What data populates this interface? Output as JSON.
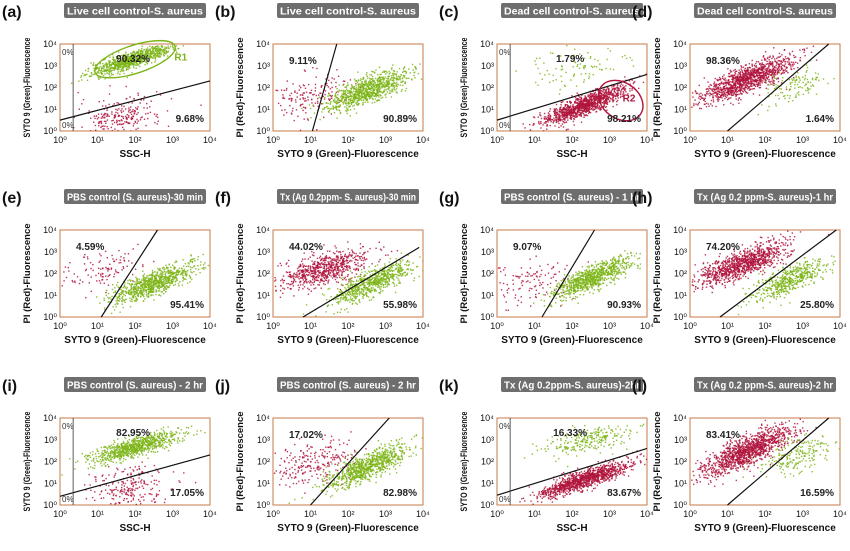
{
  "figure": {
    "panels": [
      {
        "letter": "(a)",
        "title": "Live cell control-S. aureus",
        "xlabel": "SSC-H",
        "ylabel": "SYTO 9 (Green)-Fluorescence",
        "region": "R1",
        "pct": [
          "90.32%",
          "9.68%"
        ],
        "zeros": [
          "0%",
          "0%"
        ]
      },
      {
        "letter": "(b)",
        "title": "Live cell control-S. aureus",
        "xlabel": "SYTO 9 (Green)-Fluorescence",
        "ylabel": "PI (Red)-Fluorescence",
        "pct": [
          "9.11%",
          "90.89%"
        ]
      },
      {
        "letter": "(c)",
        "title": "Dead cell control-S. aureus",
        "xlabel": "SSC-H",
        "ylabel": "SYTO 9 (Green)-Fluorescence",
        "region": "R2",
        "pct": [
          "1.79%",
          "98.21%"
        ],
        "zeros": [
          "0%",
          "0%"
        ]
      },
      {
        "letter": "(d)",
        "title": "Dead cell control-S. aureus",
        "xlabel": "SYTO 9 (Green)-Fluorescence",
        "ylabel": "PI (Red)-Fluorescence",
        "pct": [
          "98.36%",
          "1.64%"
        ]
      },
      {
        "letter": "(e)",
        "title": "PBS control (S. aureus)-30 min",
        "xlabel": "SYTO 9 (Green)-Fluorescence",
        "ylabel": "PI (Red)-Fluorescence",
        "pct": [
          "4.59%",
          "95.41%"
        ]
      },
      {
        "letter": "(f)",
        "title": "Tx (Ag 0.2ppm- S. aureus)-30 min",
        "xlabel": "SYTO 9 (Green)-Fluorescence",
        "ylabel": "PI (Red)-Fluorescence",
        "pct": [
          "44.02%",
          "55.98%"
        ]
      },
      {
        "letter": "(g)",
        "title": "PBS control (S. aureus) - 1 hr",
        "xlabel": "SYTO 9 (Green)-Fluorescence",
        "ylabel": "PI (Red)-Fluorescence",
        "pct": [
          "9.07%",
          "90.93%"
        ]
      },
      {
        "letter": "(h)",
        "title": "Tx (Ag 0.2 ppm-S. aureus)-1 hr",
        "xlabel": "SYTO 9 (Green)-Fluorescence",
        "ylabel": "PI (Red)-Fluorescence",
        "pct": [
          "74.20%",
          "25.80%"
        ]
      },
      {
        "letter": "(i)",
        "title": "PBS control (S. aureus) - 2 hr",
        "xlabel": "SSC-H",
        "ylabel": "SYTO 9 (Green)-Fluorescence",
        "pct": [
          "82.95%",
          "17.05%"
        ],
        "zeros": [
          "0%",
          "0%"
        ]
      },
      {
        "letter": "(j)",
        "title": "PBS control (S. aureus) - 2 hr",
        "xlabel": "SYTO 9 (Green)-Fluorescence",
        "ylabel": "PI (Red)-Fluorescence",
        "pct": [
          "17.02%",
          "82.98%"
        ]
      },
      {
        "letter": "(k)",
        "title": "Tx (Ag 0.2ppm-S. aureus)-2hr",
        "xlabel": "SSC-H",
        "ylabel": "SYTO 9 (Green)-Fluorescence",
        "pct": [
          "16.33%",
          "83.67%"
        ],
        "zeros": [
          "0%",
          "0%"
        ]
      },
      {
        "letter": "(l)",
        "title": "Tx (Ag 0.2 ppm-S. aureus)-2 hr",
        "xlabel": "SYTO 9 (Green)-Fluorescence",
        "ylabel": "PI (Red)-Fluorescence",
        "pct": [
          "83.41%",
          "16.59%"
        ]
      }
    ]
  },
  "colors": {
    "live": "#7cb518",
    "dead": "#b0143c",
    "title_bg": "#6e6e6e",
    "frame": "#c77a47"
  },
  "chart_data": {
    "type": "scatter",
    "x_scale": "log",
    "y_scale": "log",
    "xlim": [
      1,
      10000
    ],
    "ylim": [
      1,
      10000
    ],
    "tick_labels": [
      "10⁰",
      "10¹",
      "10²",
      "10³",
      "10⁴"
    ],
    "panel_gate_percentages": {
      "a": [
        90.32,
        9.68
      ],
      "b": [
        9.11,
        90.89
      ],
      "c": [
        1.79,
        98.21
      ],
      "d": [
        98.36,
        1.64
      ],
      "e": [
        4.59,
        95.41
      ],
      "f": [
        44.02,
        55.98
      ],
      "g": [
        9.07,
        90.93
      ],
      "h": [
        74.2,
        25.8
      ],
      "i": [
        82.95,
        17.05
      ],
      "j": [
        17.02,
        82.98
      ],
      "k": [
        16.33,
        83.67
      ],
      "l": [
        83.41,
        16.59
      ]
    },
    "series": [
      {
        "name": "live"
      },
      {
        "name": "dead"
      }
    ]
  }
}
